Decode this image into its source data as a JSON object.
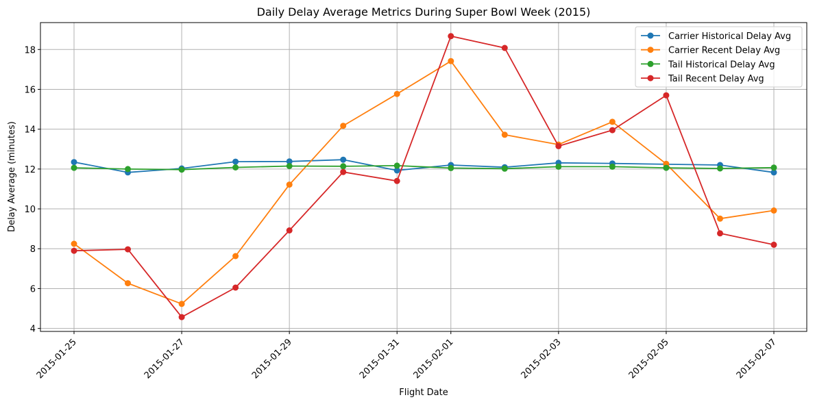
{
  "chart_data": {
    "type": "line",
    "title": "Daily Delay Average Metrics During Super Bowl Week (2015)",
    "xlabel": "Flight Date",
    "ylabel": "Delay Average (minutes)",
    "x": [
      "2015-01-25",
      "2015-01-26",
      "2015-01-27",
      "2015-01-28",
      "2015-01-29",
      "2015-01-30",
      "2015-01-31",
      "2015-02-01",
      "2015-02-02",
      "2015-02-03",
      "2015-02-04",
      "2015-02-05",
      "2015-02-06",
      "2015-02-07"
    ],
    "x_tick_labels": [
      "2015-01-25",
      "2015-01-27",
      "2015-01-29",
      "2015-01-31",
      "2015-02-01",
      "2015-02-03",
      "2015-02-05",
      "2015-02-07"
    ],
    "y_ticks": [
      4,
      6,
      8,
      10,
      12,
      14,
      16,
      18
    ],
    "ylim": [
      3.85,
      19.35
    ],
    "grid": true,
    "legend_position": "top-right",
    "markers": "circle",
    "series": [
      {
        "name": "Carrier Historical Delay Avg",
        "color": "#1f77b4",
        "values": [
          12.35,
          11.83,
          12.03,
          12.37,
          12.38,
          12.47,
          11.93,
          12.2,
          12.09,
          12.31,
          12.28,
          12.24,
          12.2,
          11.83
        ]
      },
      {
        "name": "Carrier Recent Delay Avg",
        "color": "#ff7f0e",
        "values": [
          8.25,
          6.27,
          5.23,
          7.63,
          11.22,
          14.17,
          15.77,
          17.42,
          13.72,
          13.23,
          14.37,
          12.26,
          9.51,
          9.92
        ]
      },
      {
        "name": "Tail Historical Delay Avg",
        "color": "#2ca02c",
        "values": [
          12.06,
          12.0,
          11.97,
          12.08,
          12.15,
          12.14,
          12.17,
          12.05,
          12.02,
          12.12,
          12.12,
          12.06,
          12.03,
          12.07
        ]
      },
      {
        "name": "Tail Recent Delay Avg",
        "color": "#d62728",
        "values": [
          7.9,
          7.97,
          4.57,
          6.05,
          8.92,
          11.85,
          11.4,
          18.67,
          18.08,
          13.15,
          13.95,
          15.7,
          8.77,
          8.2
        ]
      }
    ]
  }
}
